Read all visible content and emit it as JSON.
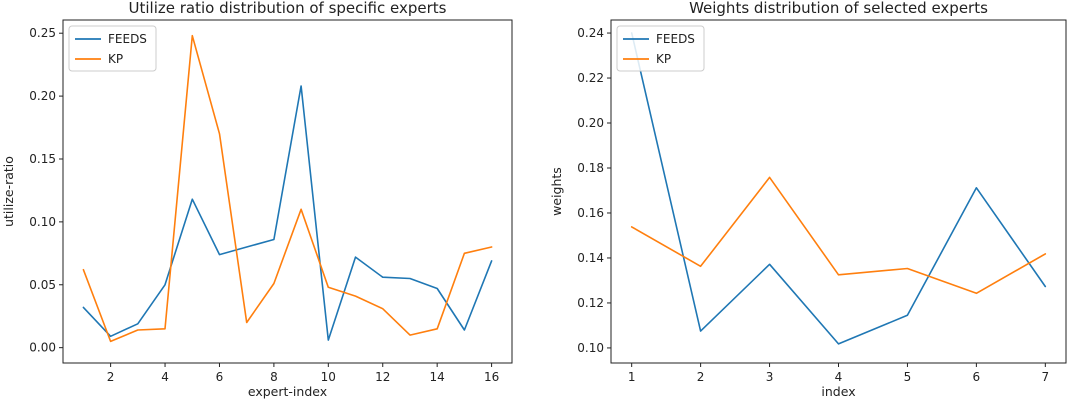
{
  "chart_data": [
    {
      "type": "line",
      "title": "Utilize ratio distribution of specific experts",
      "xlabel": "expert-index",
      "ylabel": "utilize-ratio",
      "x": [
        1,
        2,
        3,
        4,
        5,
        6,
        7,
        8,
        9,
        10,
        11,
        12,
        13,
        14,
        15,
        16
      ],
      "xlim": [
        0.25,
        16.75
      ],
      "ylim": [
        -0.0122,
        0.2605
      ],
      "xticks": [
        2,
        4,
        6,
        8,
        10,
        12,
        14,
        16
      ],
      "yticks": [
        0.0,
        0.05,
        0.1,
        0.15,
        0.2,
        0.25
      ],
      "ytick_labels": [
        "0.00",
        "0.05",
        "0.10",
        "0.15",
        "0.20",
        "0.25"
      ],
      "legend_position": "top-left",
      "grid": false,
      "series": [
        {
          "name": "FEEDS",
          "color": "#1f77b4",
          "values": [
            0.032,
            0.009,
            0.019,
            0.05,
            0.118,
            0.074,
            0.08,
            0.086,
            0.208,
            0.006,
            0.072,
            0.056,
            0.055,
            0.047,
            0.014,
            0.069
          ]
        },
        {
          "name": "KP",
          "color": "#ff7f0e",
          "values": [
            0.062,
            0.005,
            0.014,
            0.015,
            0.248,
            0.17,
            0.02,
            0.051,
            0.11,
            0.048,
            0.041,
            0.031,
            0.01,
            0.015,
            0.075,
            0.08
          ]
        }
      ]
    },
    {
      "type": "line",
      "title": "Weights distribution of selected experts",
      "xlabel": "index",
      "ylabel": "weights",
      "x": [
        1,
        2,
        3,
        4,
        5,
        6,
        7
      ],
      "xlim": [
        0.7,
        7.3
      ],
      "ylim": [
        0.0933,
        0.2458
      ],
      "xticks": [
        1,
        2,
        3,
        4,
        5,
        6,
        7
      ],
      "yticks": [
        0.1,
        0.12,
        0.14,
        0.16,
        0.18,
        0.2,
        0.22,
        0.24
      ],
      "ytick_labels": [
        "0.10",
        "0.12",
        "0.14",
        "0.16",
        "0.18",
        "0.20",
        "0.22",
        "0.24"
      ],
      "legend_position": "top-left",
      "grid": false,
      "series": [
        {
          "name": "FEEDS",
          "color": "#1f77b4",
          "values": [
            0.24,
            0.1075,
            0.1372,
            0.1018,
            0.1145,
            0.1712,
            0.1273
          ]
        },
        {
          "name": "KP",
          "color": "#ff7f0e",
          "values": [
            0.1538,
            0.1363,
            0.1758,
            0.1325,
            0.1353,
            0.1243,
            0.1418
          ]
        }
      ]
    }
  ]
}
